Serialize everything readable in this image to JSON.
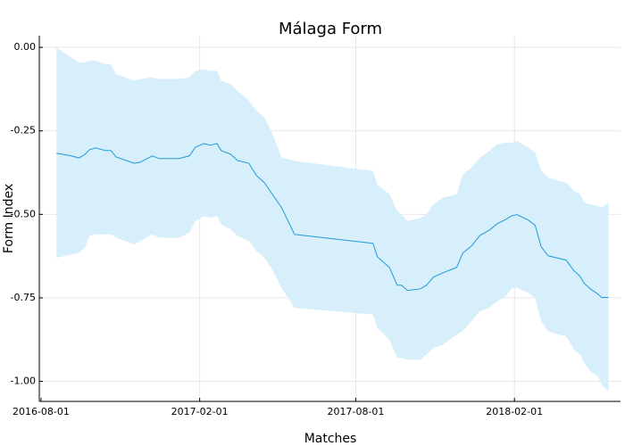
{
  "chart_data": {
    "type": "line",
    "title": "Málaga Form",
    "x_label": "Matches",
    "y_label": "Form Index",
    "x": [
      "2016-08-19",
      "2016-09-05",
      "2016-09-14",
      "2016-09-21",
      "2016-09-26",
      "2016-10-03",
      "2016-10-15",
      "2016-10-21",
      "2016-10-27",
      "2016-11-17",
      "2016-11-24",
      "2016-12-08",
      "2016-12-16",
      "2017-01-08",
      "2017-01-20",
      "2017-01-27",
      "2017-02-06",
      "2017-02-13",
      "2017-02-21",
      "2017-02-26",
      "2017-03-09",
      "2017-03-17",
      "2017-03-30",
      "2017-04-08",
      "2017-04-17",
      "2017-04-25",
      "2017-05-07",
      "2017-05-22",
      "2017-08-21",
      "2017-08-26",
      "2017-09-09",
      "2017-09-18",
      "2017-09-23",
      "2017-09-30",
      "2017-10-15",
      "2017-10-22",
      "2017-10-30",
      "2017-11-10",
      "2017-11-26",
      "2017-12-03",
      "2017-12-13",
      "2017-12-23",
      "2018-01-03",
      "2018-01-12",
      "2018-01-22",
      "2018-01-29",
      "2018-02-04",
      "2018-02-17",
      "2018-02-25",
      "2018-03-04",
      "2018-03-12",
      "2018-03-25",
      "2018-04-02",
      "2018-04-11",
      "2018-04-18",
      "2018-04-23",
      "2018-04-30",
      "2018-05-09",
      "2018-05-13",
      "2018-05-21"
    ],
    "series": [
      {
        "color": "#1f9bd7",
        "band_color": "#d7eefb",
        "values": [
          -0.317,
          -0.325,
          -0.331,
          -0.32,
          -0.307,
          -0.301,
          -0.309,
          -0.309,
          -0.328,
          -0.347,
          -0.344,
          -0.325,
          -0.333,
          -0.333,
          -0.325,
          -0.299,
          -0.288,
          -0.293,
          -0.288,
          -0.309,
          -0.32,
          -0.339,
          -0.347,
          -0.384,
          -0.405,
          -0.435,
          -0.48,
          -0.56,
          -0.587,
          -0.627,
          -0.659,
          -0.712,
          -0.712,
          -0.728,
          -0.723,
          -0.712,
          -0.688,
          -0.675,
          -0.659,
          -0.616,
          -0.595,
          -0.563,
          -0.547,
          -0.528,
          -0.515,
          -0.504,
          -0.501,
          -0.517,
          -0.533,
          -0.597,
          -0.624,
          -0.632,
          -0.637,
          -0.669,
          -0.685,
          -0.707,
          -0.723,
          -0.739,
          -0.749,
          -0.749
        ],
        "upper": [
          0.0,
          -0.03,
          -0.045,
          -0.045,
          -0.04,
          -0.04,
          -0.05,
          -0.05,
          -0.08,
          -0.1,
          -0.095,
          -0.09,
          -0.095,
          -0.095,
          -0.09,
          -0.07,
          -0.065,
          -0.07,
          -0.07,
          -0.1,
          -0.11,
          -0.13,
          -0.16,
          -0.19,
          -0.21,
          -0.25,
          -0.33,
          -0.34,
          -0.37,
          -0.41,
          -0.44,
          -0.49,
          -0.5,
          -0.52,
          -0.51,
          -0.5,
          -0.47,
          -0.45,
          -0.44,
          -0.38,
          -0.36,
          -0.33,
          -0.31,
          -0.29,
          -0.285,
          -0.285,
          -0.28,
          -0.3,
          -0.315,
          -0.37,
          -0.39,
          -0.4,
          -0.405,
          -0.43,
          -0.44,
          -0.465,
          -0.47,
          -0.475,
          -0.48,
          -0.465
        ],
        "lower": [
          -0.63,
          -0.62,
          -0.615,
          -0.6,
          -0.565,
          -0.56,
          -0.56,
          -0.56,
          -0.57,
          -0.59,
          -0.58,
          -0.56,
          -0.57,
          -0.57,
          -0.555,
          -0.52,
          -0.505,
          -0.51,
          -0.505,
          -0.53,
          -0.545,
          -0.565,
          -0.58,
          -0.61,
          -0.63,
          -0.66,
          -0.72,
          -0.78,
          -0.8,
          -0.84,
          -0.875,
          -0.93,
          -0.93,
          -0.935,
          -0.935,
          -0.92,
          -0.9,
          -0.89,
          -0.86,
          -0.85,
          -0.82,
          -0.79,
          -0.78,
          -0.76,
          -0.745,
          -0.72,
          -0.72,
          -0.735,
          -0.75,
          -0.82,
          -0.85,
          -0.86,
          -0.865,
          -0.905,
          -0.92,
          -0.945,
          -0.97,
          -0.985,
          -1.01,
          -1.03
        ]
      }
    ],
    "xlim": [
      "2016-07-30",
      "2018-06-04"
    ],
    "xticks": [
      "2016-08-01",
      "2017-02-01",
      "2017-08-01",
      "2018-02-01"
    ],
    "ylim": [
      -1.06,
      0.035
    ],
    "yticks": [
      {
        "value": 0,
        "label": "0.00"
      },
      -0.25,
      {
        "value": -0.5,
        "label": "-0.50"
      },
      -0.75,
      {
        "value": -1,
        "label": "-1.00"
      }
    ],
    "grid": true
  }
}
